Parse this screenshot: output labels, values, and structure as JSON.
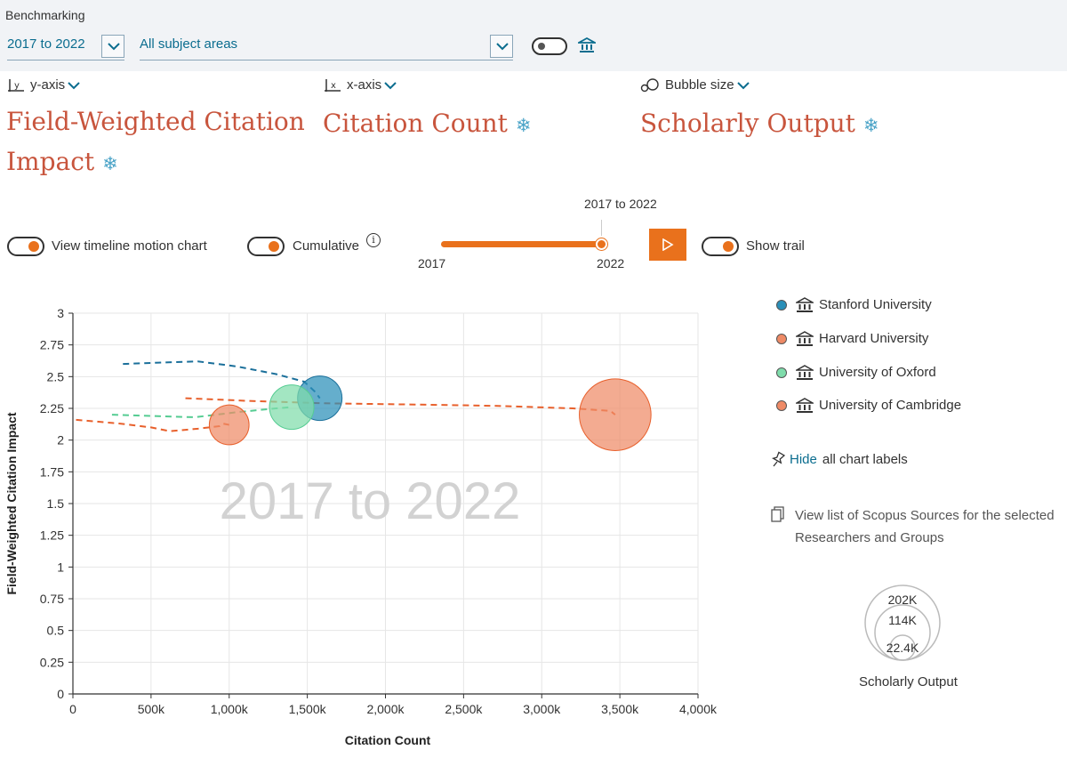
{
  "header": {
    "section": "Benchmarking",
    "period": "2017 to 2022",
    "subject": "All subject areas"
  },
  "axes": {
    "y_label": "y-axis",
    "y_metric": "Field-Weighted Citation Impact",
    "x_label": "x-axis",
    "x_metric": "Citation Count",
    "size_label": "Bubble size",
    "size_metric": "Scholarly Output",
    "snow_glyph": "❄"
  },
  "controls": {
    "timeline_label": "View timeline motion chart",
    "cumulative_label": "Cumulative",
    "info_glyph": "i",
    "slider_top": "2017 to 2022",
    "slider_start": "2017",
    "slider_end": "2022",
    "trail_label": "Show trail"
  },
  "legend": {
    "items": [
      {
        "name": "Stanford University",
        "color": "#2a8fb8"
      },
      {
        "name": "Harvard University",
        "color": "#ee8a66"
      },
      {
        "name": "University of Oxford",
        "color": "#7fdcab"
      },
      {
        "name": "University of Cambridge",
        "color": "#ee8a66"
      }
    ],
    "hide_link": "Hide",
    "hide_rest": "all chart labels",
    "sources_text": "View list of Scopus Sources for the selected Researchers and Groups"
  },
  "bubble_legend": {
    "values": [
      "202K",
      "114K",
      "22.4K"
    ],
    "label": "Scholarly Output"
  },
  "chart_data": {
    "type": "scatter",
    "watermark": "2017 to 2022",
    "xlabel": "Citation Count",
    "ylabel": "Field-Weighted Citation Impact",
    "xlim": [
      0,
      4000000
    ],
    "ylim": [
      0,
      3
    ],
    "x_ticks": [
      {
        "v": 0,
        "label": "0"
      },
      {
        "v": 500000,
        "label": "500k"
      },
      {
        "v": 1000000,
        "label": "1,000k"
      },
      {
        "v": 1500000,
        "label": "1,500k"
      },
      {
        "v": 2000000,
        "label": "2,000k"
      },
      {
        "v": 2500000,
        "label": "2,500k"
      },
      {
        "v": 3000000,
        "label": "3,000k"
      },
      {
        "v": 3500000,
        "label": "3,500k"
      },
      {
        "v": 4000000,
        "label": "4,000k"
      }
    ],
    "y_ticks": [
      {
        "v": 0,
        "label": "0"
      },
      {
        "v": 0.25,
        "label": "0.25"
      },
      {
        "v": 0.5,
        "label": "0.5"
      },
      {
        "v": 0.75,
        "label": "0.75"
      },
      {
        "v": 1,
        "label": "1"
      },
      {
        "v": 1.25,
        "label": "1.25"
      },
      {
        "v": 1.5,
        "label": "1.5"
      },
      {
        "v": 1.75,
        "label": "1.75"
      },
      {
        "v": 2,
        "label": "2"
      },
      {
        "v": 2.25,
        "label": "2.25"
      },
      {
        "v": 2.5,
        "label": "2.5"
      },
      {
        "v": 2.75,
        "label": "2.75"
      },
      {
        "v": 3,
        "label": "3"
      }
    ],
    "grid": true,
    "legend": "right",
    "series": [
      {
        "name": "Stanford University",
        "color": "#2a8fb8",
        "trail_color": "#1a6f9a",
        "trail": [
          [
            320000,
            2.6
          ],
          [
            550000,
            2.61
          ],
          [
            800000,
            2.62
          ],
          [
            1050000,
            2.58
          ],
          [
            1300000,
            2.52
          ],
          [
            1480000,
            2.46
          ],
          [
            1550000,
            2.38
          ],
          [
            1580000,
            2.33
          ]
        ],
        "x": 1580000,
        "y": 2.33,
        "size": 1
      },
      {
        "name": "Harvard University",
        "color": "#ee8a66",
        "trail_color": "#e8602c",
        "trail": [
          [
            720000,
            2.33
          ],
          [
            1100000,
            2.31
          ],
          [
            1600000,
            2.29
          ],
          [
            2200000,
            2.28
          ],
          [
            2700000,
            2.27
          ],
          [
            3200000,
            2.25
          ],
          [
            3440000,
            2.23
          ],
          [
            3470000,
            2.2
          ]
        ],
        "x": 3470000,
        "y": 2.2,
        "size": 2.6
      },
      {
        "name": "University of Oxford",
        "color": "#7fdcab",
        "trail_color": "#55cc92",
        "trail": [
          [
            250000,
            2.2
          ],
          [
            500000,
            2.19
          ],
          [
            780000,
            2.18
          ],
          [
            1050000,
            2.22
          ],
          [
            1300000,
            2.25
          ],
          [
            1400000,
            2.26
          ]
        ],
        "x": 1400000,
        "y": 2.26,
        "size": 1
      },
      {
        "name": "University of Cambridge",
        "color": "#ee8a66",
        "trail_color": "#e8602c",
        "trail": [
          [
            20000,
            2.16
          ],
          [
            300000,
            2.13
          ],
          [
            500000,
            2.1
          ],
          [
            620000,
            2.07
          ],
          [
            800000,
            2.09
          ],
          [
            940000,
            2.11
          ],
          [
            960000,
            2.13
          ],
          [
            1000000,
            2.12
          ]
        ],
        "x": 1000000,
        "y": 2.12,
        "size": 0.8
      }
    ]
  }
}
